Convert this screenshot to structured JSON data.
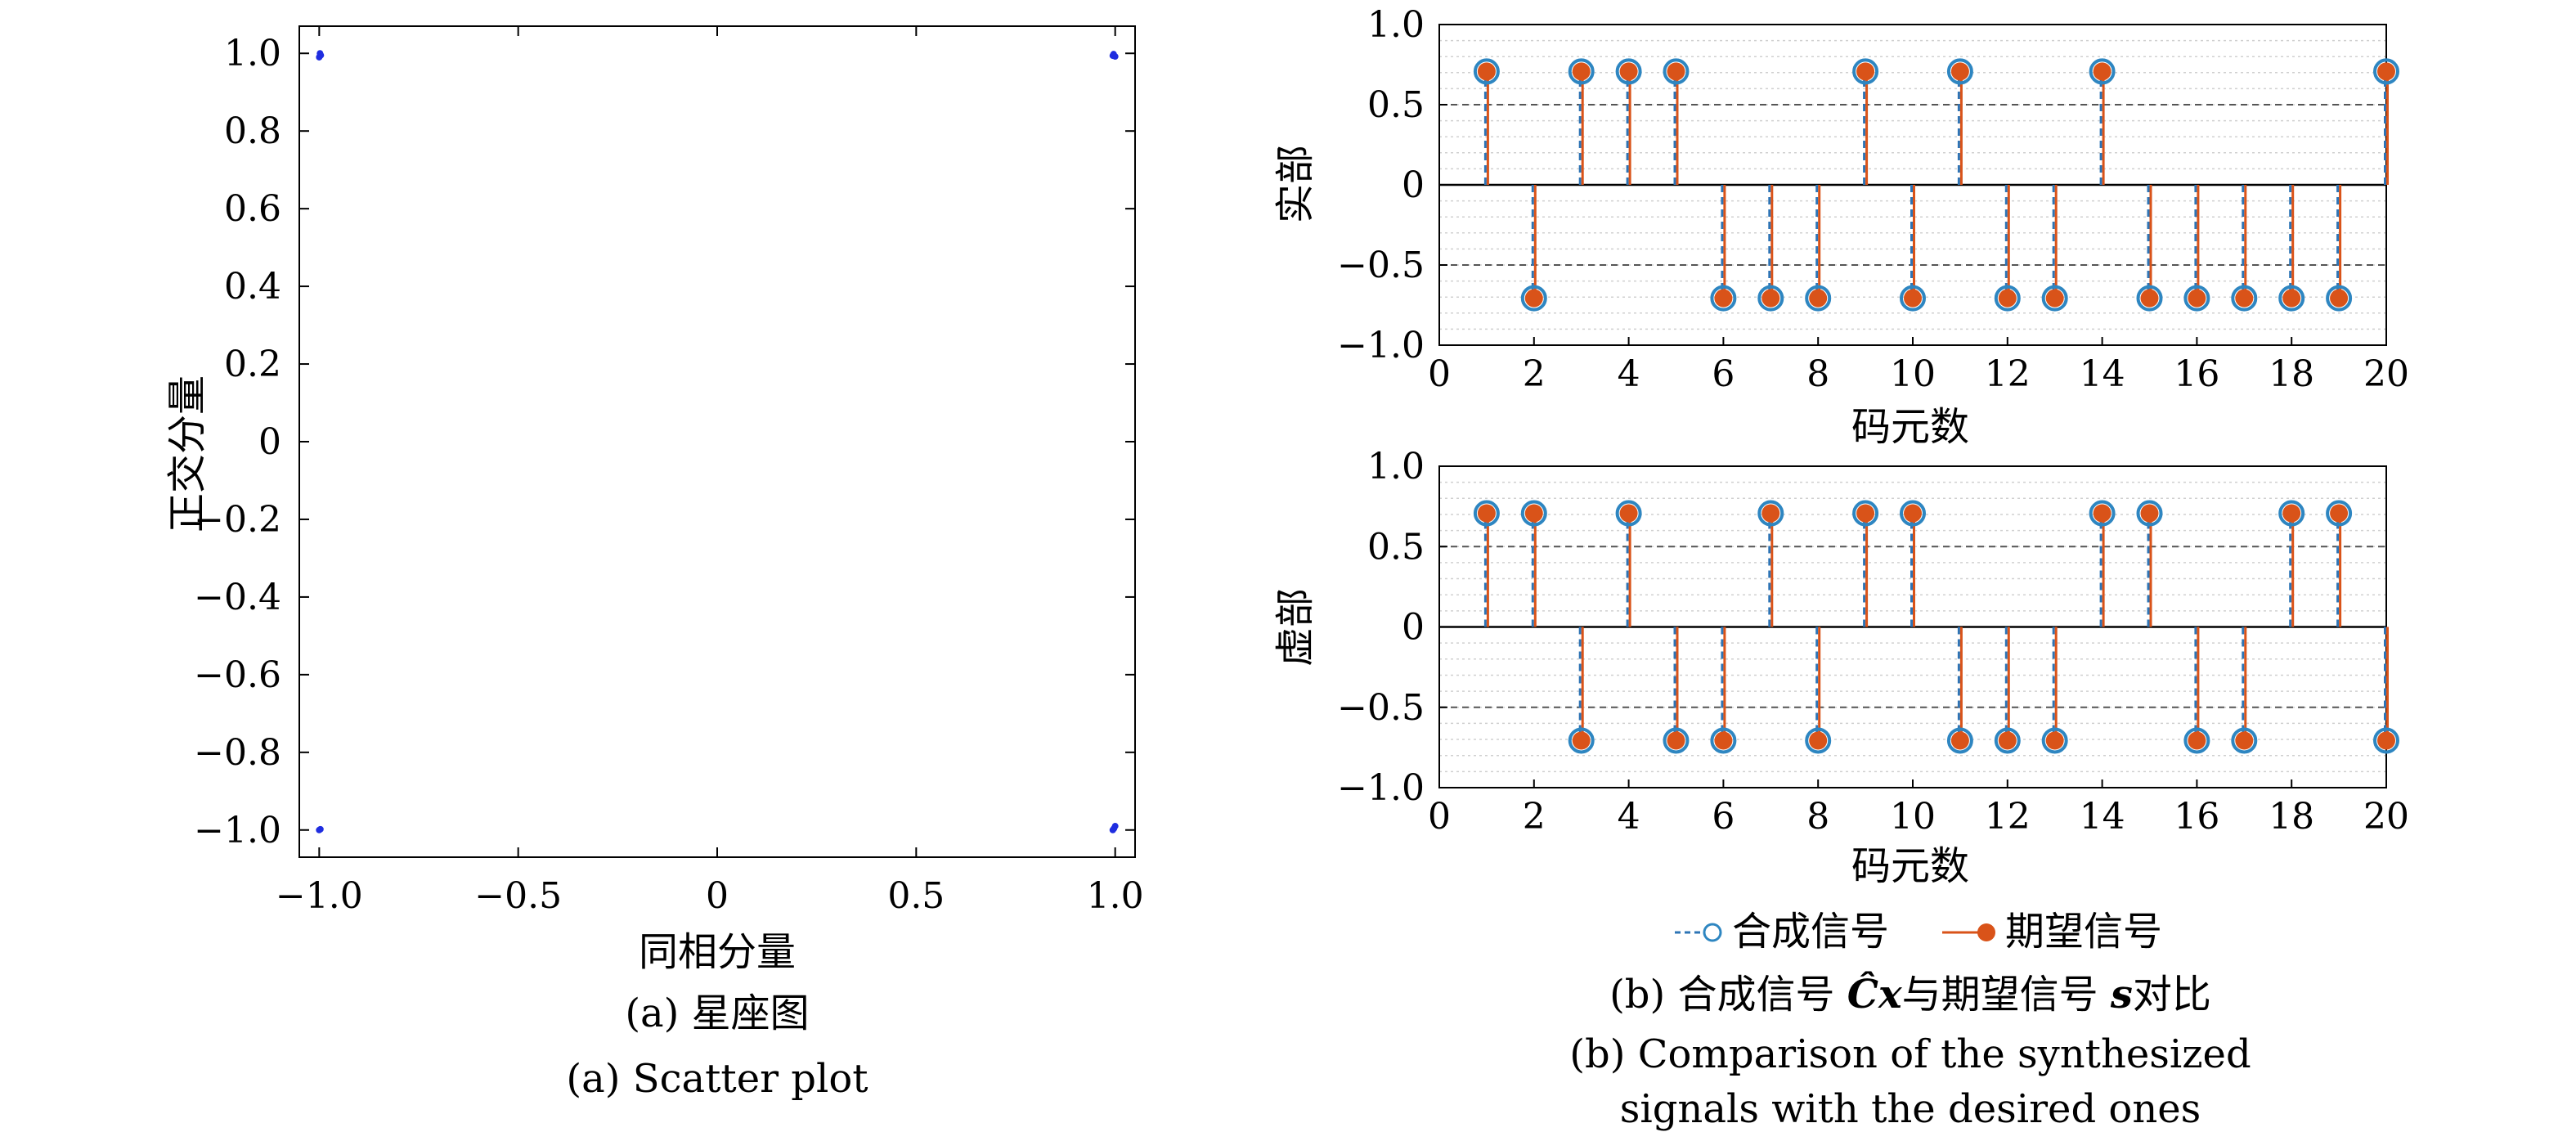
{
  "captions": {
    "a_cn": "(a) 星座图",
    "a_en": "(a) Scatter plot",
    "b_cn_pre": "(b) 合成信号 ",
    "b_cn_math1": "Ĉx",
    "b_cn_mid": "与期望信号 ",
    "b_cn_math2": "s",
    "b_cn_post": "对比",
    "b_en_line1": "(b) Comparison of the synthesized",
    "b_en_line2": "signals with the desired ones"
  },
  "colors": {
    "scatter_points": "#1f2de0",
    "synth_stem": "#2e74b5",
    "synth_marker": "#2e86c1",
    "desired": "#d95319"
  },
  "chart_data": [
    {
      "id": "scatter",
      "type": "scatter",
      "xlabel": "同相分量",
      "ylabel": "正交分量",
      "xlim": [
        -1.05,
        1.05
      ],
      "ylim": [
        -1.07,
        1.07
      ],
      "xticks": [
        -1.0,
        -0.5,
        0,
        0.5,
        1.0
      ],
      "xtick_labels": [
        "−1.0",
        "−0.5",
        "0",
        "0.5",
        "1.0"
      ],
      "yticks": [
        1.0,
        0.8,
        0.6,
        0.4,
        0.2,
        0,
        -0.2,
        -0.4,
        -0.6,
        -0.8,
        -1.0
      ],
      "ytick_labels": [
        "1.0",
        "0.8",
        "0.6",
        "0.4",
        "0.2",
        "0",
        "−0.2",
        "−0.4",
        "−0.6",
        "−0.8",
        "−1.0"
      ],
      "points": [
        [
          -0.998,
          1.0
        ],
        [
          -0.996,
          0.995
        ],
        [
          -1.0,
          0.99
        ],
        [
          0.996,
          0.998
        ],
        [
          1.0,
          0.992
        ],
        [
          0.994,
          0.994
        ],
        [
          -0.997,
          -0.998
        ],
        [
          -1.0,
          -1.0
        ],
        [
          0.997,
          -0.996
        ],
        [
          1.0,
          -0.99
        ],
        [
          0.994,
          -1.0
        ]
      ]
    },
    {
      "id": "real",
      "type": "stem",
      "xlabel": "码元数",
      "ylabel": "实部",
      "xlim": [
        0,
        20
      ],
      "ylim": [
        -1.0,
        1.0
      ],
      "xticks": [
        0,
        2,
        4,
        6,
        8,
        10,
        12,
        14,
        16,
        18,
        20
      ],
      "yticks": [
        1.0,
        0.5,
        0,
        -0.5,
        -1.0
      ],
      "ytick_labels": [
        "1.0",
        "0.5",
        "0",
        "−0.5",
        "−1.0"
      ],
      "x": [
        1,
        2,
        3,
        4,
        5,
        6,
        7,
        8,
        9,
        10,
        11,
        12,
        13,
        14,
        15,
        16,
        17,
        18,
        19,
        20
      ],
      "series": [
        {
          "name": "合成信号",
          "values": [
            0.7071,
            -0.7071,
            0.7071,
            0.7071,
            0.7071,
            -0.7071,
            -0.7071,
            -0.7071,
            0.7071,
            -0.7071,
            0.7071,
            -0.7071,
            -0.7071,
            0.7071,
            -0.7071,
            -0.7071,
            -0.7071,
            -0.7071,
            -0.7071,
            0.7071
          ]
        },
        {
          "name": "期望信号",
          "values": [
            0.7071,
            -0.7071,
            0.7071,
            0.7071,
            0.7071,
            -0.7071,
            -0.7071,
            -0.7071,
            0.7071,
            -0.7071,
            0.7071,
            -0.7071,
            -0.7071,
            0.7071,
            -0.7071,
            -0.7071,
            -0.7071,
            -0.7071,
            -0.7071,
            0.7071
          ]
        }
      ]
    },
    {
      "id": "imag",
      "type": "stem",
      "xlabel": "码元数",
      "ylabel": "虚部",
      "xlim": [
        0,
        20
      ],
      "ylim": [
        -1.0,
        1.0
      ],
      "xticks": [
        0,
        2,
        4,
        6,
        8,
        10,
        12,
        14,
        16,
        18,
        20
      ],
      "yticks": [
        1.0,
        0.5,
        0,
        -0.5,
        -1.0
      ],
      "ytick_labels": [
        "1.0",
        "0.5",
        "0",
        "−0.5",
        "−1.0"
      ],
      "x": [
        1,
        2,
        3,
        4,
        5,
        6,
        7,
        8,
        9,
        10,
        11,
        12,
        13,
        14,
        15,
        16,
        17,
        18,
        19,
        20
      ],
      "series": [
        {
          "name": "合成信号",
          "values": [
            0.7071,
            0.7071,
            -0.7071,
            0.7071,
            -0.7071,
            -0.7071,
            0.7071,
            -0.7071,
            0.7071,
            0.7071,
            -0.7071,
            -0.7071,
            -0.7071,
            0.7071,
            0.7071,
            -0.7071,
            -0.7071,
            0.7071,
            0.7071,
            -0.7071
          ]
        },
        {
          "name": "期望信号",
          "values": [
            0.7071,
            0.7071,
            -0.7071,
            0.7071,
            -0.7071,
            -0.7071,
            0.7071,
            -0.7071,
            0.7071,
            0.7071,
            -0.7071,
            -0.7071,
            -0.7071,
            0.7071,
            0.7071,
            -0.7071,
            -0.7071,
            0.7071,
            0.7071,
            -0.7071
          ]
        }
      ]
    }
  ],
  "legend": {
    "items": [
      {
        "label": "合成信号"
      },
      {
        "label": "期望信号"
      }
    ]
  }
}
